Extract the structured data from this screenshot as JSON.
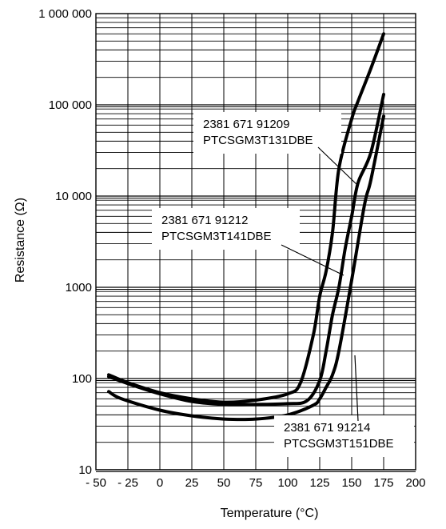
{
  "chart_data": {
    "type": "line",
    "xlabel": "Temperature (°C)",
    "ylabel": "Resistance (Ω)",
    "xlim": [
      -50,
      200
    ],
    "ylim": [
      10,
      1000000
    ],
    "y_scale": "log",
    "grid": true,
    "x_ticks": [
      -50,
      -25,
      0,
      25,
      50,
      75,
      100,
      125,
      150,
      175,
      200
    ],
    "x_tick_labels": [
      "- 50",
      "- 25",
      "0",
      "25",
      "50",
      "75",
      "100",
      "125",
      "150",
      "175",
      "200"
    ],
    "y_ticks": [
      10,
      100,
      1000,
      10000,
      100000,
      1000000
    ],
    "y_tick_labels": [
      "10",
      "100",
      "1000",
      "10 000",
      "100 000",
      "1 000 000"
    ],
    "annotations": [
      {
        "lines": [
          "2381 671 91209",
          "PTCSGM3T131DBE"
        ]
      },
      {
        "lines": [
          "2381 671 91212",
          "PTCSGM3T141DBE"
        ]
      },
      {
        "lines": [
          "2381 671 91214",
          "PTCSGM3T151DBE"
        ]
      }
    ],
    "series": [
      {
        "x": [
          -40,
          -25,
          0,
          25,
          50,
          75,
          100,
          110,
          120,
          125,
          130,
          135,
          140,
          150,
          155,
          165,
          175
        ],
        "y": [
          110,
          90,
          70,
          60,
          55,
          58,
          68,
          90,
          300,
          800,
          1500,
          4000,
          20000,
          70000,
          110000,
          250000,
          600000
        ]
      },
      {
        "x": [
          -40,
          -25,
          0,
          25,
          50,
          75,
          100,
          115,
          125,
          130,
          135,
          140,
          145,
          150,
          155,
          165,
          175
        ],
        "y": [
          105,
          88,
          68,
          56,
          52,
          52,
          53,
          57,
          95,
          200,
          500,
          1000,
          2700,
          6000,
          14000,
          30000,
          130000
        ]
      },
      {
        "x": [
          -40,
          -30,
          0,
          25,
          50,
          75,
          100,
          120,
          125,
          130,
          135,
          140,
          150,
          160,
          165,
          175
        ],
        "y": [
          72,
          60,
          45,
          39,
          36,
          36,
          40,
          51,
          60,
          80,
          110,
          200,
          1200,
          8000,
          15000,
          75000
        ]
      }
    ]
  }
}
